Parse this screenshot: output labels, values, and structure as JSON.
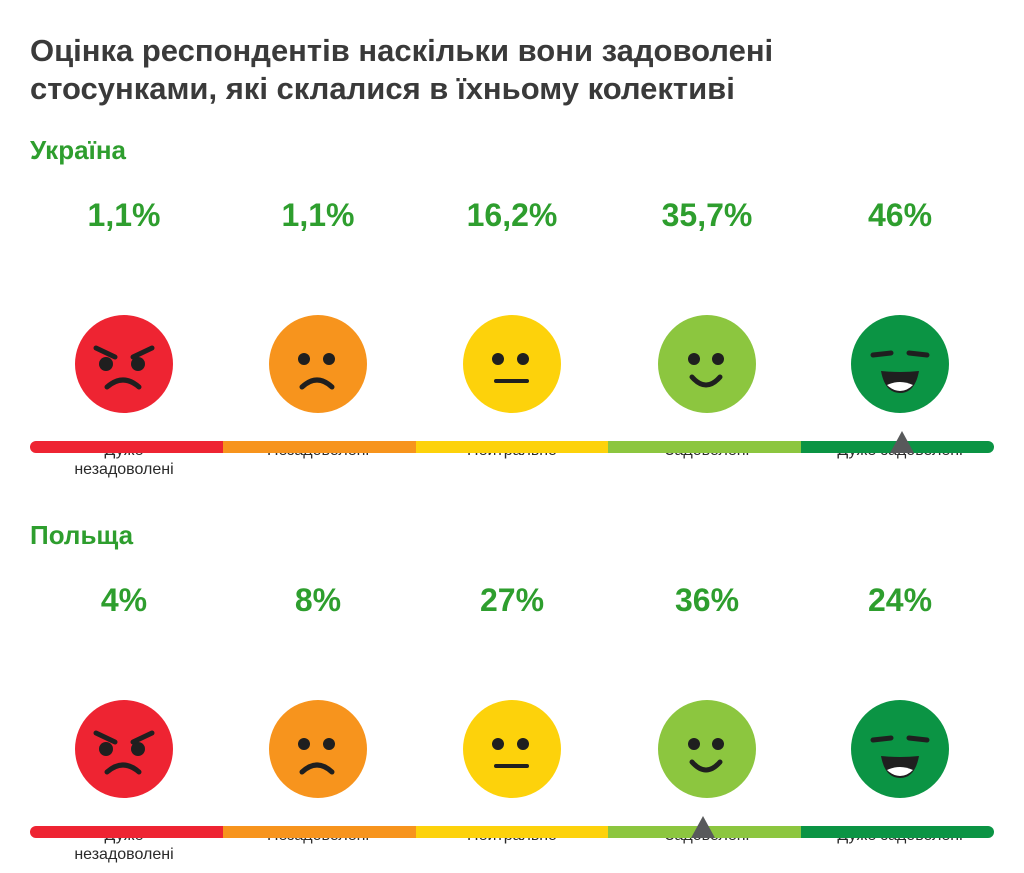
{
  "title_lines": [
    "Оцінка респондентів наскільки вони задоволені",
    "стосунками, які склалися в їхньому колективі"
  ],
  "colors": {
    "accent_green": "#2e9e2e",
    "title": "#3a3a3a",
    "very_dissatisfied": "#ee2432",
    "dissatisfied": "#f7941d",
    "neutral": "#fdd20b",
    "satisfied": "#8cc63f",
    "very_satisfied": "#0b9444",
    "marker": "#58595b"
  },
  "categories": [
    {
      "key": "very_dissatisfied",
      "label_lines": [
        "Дуже",
        "незадоволені"
      ],
      "icon": "angry-face-icon"
    },
    {
      "key": "dissatisfied",
      "label_lines": [
        "Незадоволені"
      ],
      "icon": "sad-face-icon"
    },
    {
      "key": "neutral",
      "label_lines": [
        "Нейтрально"
      ],
      "icon": "neutral-face-icon"
    },
    {
      "key": "satisfied",
      "label_lines": [
        "Задоволені"
      ],
      "icon": "smile-face-icon"
    },
    {
      "key": "very_satisfied",
      "label_lines": [
        "Дуже задоволені"
      ],
      "icon": "grin-face-icon"
    }
  ],
  "chart_data": [
    {
      "type": "bar",
      "title": "Україна",
      "categories": [
        "Дуже незадоволені",
        "Незадоволені",
        "Нейтрально",
        "Задоволені",
        "Дуже задоволені"
      ],
      "values": [
        1.1,
        1.1,
        16.2,
        35.7,
        46
      ],
      "value_labels": [
        "1,1%",
        "1,1%",
        "16,2%",
        "35,7%",
        "46%"
      ],
      "scale_marker_fraction": 0.905
    },
    {
      "type": "bar",
      "title": "Польща",
      "categories": [
        "Дуже незадоволені",
        "Незадоволені",
        "Нейтрально",
        "Задоволені",
        "Дуже задоволені"
      ],
      "values": [
        4,
        8,
        27,
        36,
        24
      ],
      "value_labels": [
        "4%",
        "8%",
        "27%",
        "36%",
        "24%"
      ],
      "scale_marker_fraction": 0.698
    }
  ]
}
